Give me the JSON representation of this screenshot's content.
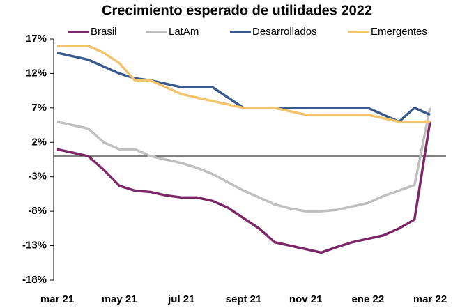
{
  "chart_data": {
    "type": "line",
    "title": "Crecimiento esperado de utilidades 2022",
    "categories": [
      "mar 21",
      null,
      null,
      null,
      "may 21",
      null,
      null,
      null,
      "jul 21",
      null,
      null,
      null,
      "sept 21",
      null,
      null,
      null,
      "nov 21",
      null,
      null,
      null,
      "ene 22",
      null,
      null,
      null,
      "mar 22"
    ],
    "series": [
      {
        "name": "Brasil",
        "color": "#7b2767",
        "values": [
          1,
          0.5,
          0,
          -2,
          -4.3,
          -5,
          -5.2,
          -5.7,
          -6,
          -6,
          -6.5,
          -7.5,
          -9,
          -10.5,
          -12.5,
          -13,
          -13.5,
          -14,
          -13.2,
          -12.5,
          -12,
          -11.5,
          -10.5,
          -9.2,
          5
        ]
      },
      {
        "name": "LatAm",
        "color": "#bfbfbf",
        "values": [
          5,
          4.5,
          4,
          2,
          1,
          1,
          0,
          -0.5,
          -1,
          -1.7,
          -2.6,
          -3.8,
          -5,
          -6,
          -7,
          -7.6,
          -8,
          -8,
          -7.8,
          -7.3,
          -6.8,
          -5.8,
          -5,
          -4.2,
          7
        ]
      },
      {
        "name": "Desarrollados",
        "color": "#3a5a8c",
        "values": [
          15,
          14.5,
          14,
          13,
          12,
          11.3,
          11,
          10.5,
          10,
          10,
          10,
          8.5,
          7,
          7,
          7,
          7,
          7,
          7,
          7,
          7,
          7,
          6,
          5,
          7,
          6
        ]
      },
      {
        "name": "Emergentes",
        "color": "#f2c46e",
        "values": [
          16,
          16,
          16,
          15,
          13.5,
          11,
          11,
          10,
          9,
          8.5,
          8,
          7.5,
          7,
          7,
          7,
          6.5,
          6,
          6,
          6,
          6,
          6,
          5.5,
          5,
          5,
          5
        ]
      }
    ],
    "ylim": [
      -18,
      17
    ],
    "yticks": [
      {
        "value": 17,
        "label": "17%"
      },
      {
        "value": 12,
        "label": "12%"
      },
      {
        "value": 7,
        "label": "7%"
      },
      {
        "value": 2,
        "label": "2%"
      },
      {
        "value": -3,
        "label": "-3%"
      },
      {
        "value": -8,
        "label": "-8%"
      },
      {
        "value": -13,
        "label": "-13%"
      },
      {
        "value": -18,
        "label": "-18%"
      }
    ],
    "legend": "top",
    "grid": false
  }
}
